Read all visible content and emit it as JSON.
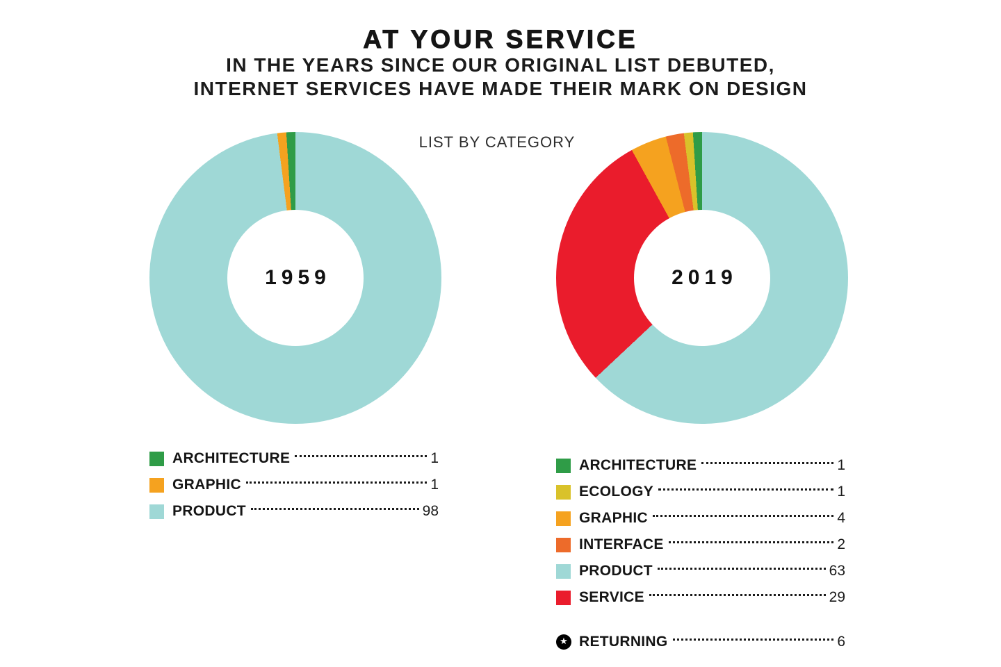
{
  "header": {
    "title": "AT YOUR SERVICE",
    "subtitle_line1": "IN THE YEARS SINCE OUR ORIGINAL LIST DEBUTED,",
    "subtitle_line2": "INTERNET SERVICES HAVE MADE THEIR MARK ON DESIGN"
  },
  "chart_label": "LIST BY CATEGORY",
  "icons": {
    "returning_star": "★"
  },
  "chart_data": [
    {
      "type": "pie",
      "donut": true,
      "title": "1959",
      "categories": [
        "ARCHITECTURE",
        "GRAPHIC",
        "PRODUCT"
      ],
      "values": [
        1,
        1,
        98
      ],
      "colors": [
        "#2f9c47",
        "#f5a21f",
        "#9fd8d6"
      ],
      "draw_order": [
        2,
        1,
        0
      ],
      "legend_position": "bottom"
    },
    {
      "type": "pie",
      "donut": true,
      "title": "2019",
      "categories": [
        "ARCHITECTURE",
        "ECOLOGY",
        "GRAPHIC",
        "INTERFACE",
        "PRODUCT",
        "SERVICE"
      ],
      "values": [
        1,
        1,
        4,
        2,
        63,
        29
      ],
      "colors": [
        "#2f9c47",
        "#d9c22a",
        "#f5a21f",
        "#ed6b2a",
        "#9fd8d6",
        "#ea1c2c"
      ],
      "draw_order": [
        4,
        5,
        2,
        3,
        1,
        0
      ],
      "legend_position": "bottom",
      "returning": {
        "label": "RETURNING",
        "value": 6
      }
    }
  ]
}
